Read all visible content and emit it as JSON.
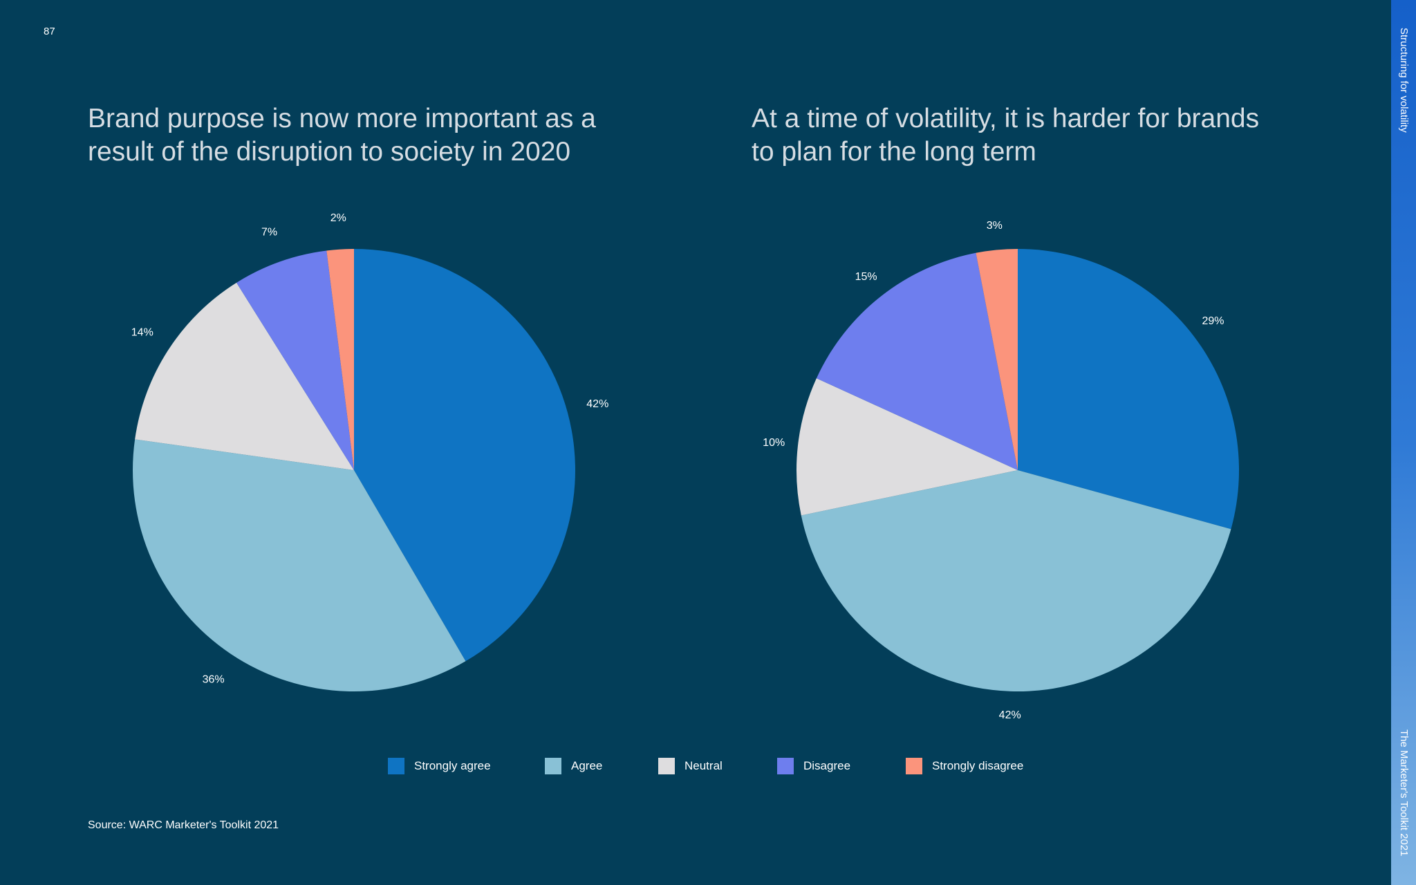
{
  "page": {
    "number": "87",
    "side_label_top": "Structuring for volatility",
    "side_label_bottom": "The Marketer's Toolkit 2021",
    "source": "Source: WARC Marketer's Toolkit 2021"
  },
  "legend": [
    {
      "label": "Strongly agree",
      "color": "#0f74c3"
    },
    {
      "label": "Agree",
      "color": "#89c1d6"
    },
    {
      "label": "Neutral",
      "color": "#dedddf"
    },
    {
      "label": "Disagree",
      "color": "#6e7eee"
    },
    {
      "label": "Strongly disagree",
      "color": "#fb947c"
    }
  ],
  "chart_data": [
    {
      "type": "pie",
      "title_lines": [
        "Brand purpose is now more important as a",
        "result of the disruption to society in 2020"
      ],
      "categories": [
        "Strongly agree",
        "Agree",
        "Neutral",
        "Disagree",
        "Strongly disagree"
      ],
      "values": [
        42,
        36,
        14,
        7,
        2
      ],
      "labels": [
        "42%",
        "36%",
        "14%",
        "7%",
        "2%"
      ],
      "start_angle_deg": 0,
      "direction": "clockwise"
    },
    {
      "type": "pie",
      "title_lines": [
        "At a time of volatility, it is harder for brands",
        "to plan for the long term"
      ],
      "categories": [
        "Strongly agree",
        "Agree",
        "Neutral",
        "Disagree",
        "Strongly disagree"
      ],
      "values": [
        29,
        42,
        10,
        15,
        3
      ],
      "labels": [
        "29%",
        "42%",
        "10%",
        "15%",
        "3%"
      ],
      "start_angle_deg": 0,
      "direction": "clockwise"
    }
  ]
}
